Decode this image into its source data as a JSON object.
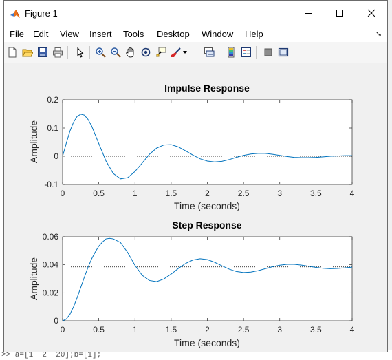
{
  "window": {
    "title": "Figure 1"
  },
  "menu": {
    "items": [
      "File",
      "Edit",
      "View",
      "Insert",
      "Tools",
      "Desktop",
      "Window",
      "Help"
    ]
  },
  "background": {
    "command_line": ">> a=[1  2  20];b=[1];"
  },
  "toolbar": {
    "buttons": [
      "new-figure-icon",
      "open-file-icon",
      "save-icon",
      "print-icon",
      "edit-plot-arrow-icon",
      "zoom-in-icon",
      "zoom-out-icon",
      "pan-hand-icon",
      "rotate-3d-icon",
      "data-cursor-icon",
      "brush-icon",
      "link-plot-icon",
      "colorbar-icon",
      "legend-icon",
      "hide-plot-tools-icon",
      "show-plot-tools-icon"
    ]
  },
  "colors": {
    "line": "#0072bd",
    "axes_bg": "#ffffff",
    "figure_bg": "#f0f0f0"
  },
  "chart_data": [
    {
      "type": "line",
      "title": "Impulse Response",
      "xlabel": "Time (seconds)",
      "ylabel": "Amplitude",
      "xlim": [
        0,
        4
      ],
      "ylim": [
        -0.1,
        0.2
      ],
      "xticks": [
        "0",
        "0.5",
        "1",
        "1.5",
        "2",
        "2.5",
        "3",
        "3.5",
        "4"
      ],
      "yticks": [
        "-0.1",
        "0",
        "0.1",
        "0.2"
      ],
      "reference_line": 0,
      "series": [
        {
          "x": [
            0,
            0.05,
            0.1,
            0.15,
            0.2,
            0.25,
            0.3,
            0.35,
            0.4,
            0.5,
            0.6,
            0.7,
            0.8,
            0.9,
            1.0,
            1.1,
            1.2,
            1.3,
            1.4,
            1.5,
            1.6,
            1.7,
            1.8,
            1.9,
            2.0,
            2.1,
            2.2,
            2.3,
            2.4,
            2.5,
            2.6,
            2.7,
            2.8,
            2.9,
            3.0,
            3.1,
            3.2,
            3.3,
            3.4,
            3.5,
            3.6,
            3.7,
            3.8,
            3.9,
            4.0
          ],
          "y": [
            0,
            0.045,
            0.088,
            0.12,
            0.141,
            0.149,
            0.146,
            0.131,
            0.108,
            0.045,
            -0.017,
            -0.061,
            -0.08,
            -0.076,
            -0.054,
            -0.024,
            0.007,
            0.029,
            0.04,
            0.041,
            0.033,
            0.019,
            0.004,
            -0.009,
            -0.017,
            -0.02,
            -0.018,
            -0.012,
            -0.004,
            0.003,
            0.008,
            0.01,
            0.01,
            0.007,
            0.003,
            -0.001,
            -0.004,
            -0.005,
            -0.005,
            -0.004,
            -0.002,
            0,
            0.001,
            0.002,
            0.002
          ]
        }
      ]
    },
    {
      "type": "line",
      "title": "Step Response",
      "xlabel": "Time (seconds)",
      "ylabel": "Amplitude",
      "xlim": [
        0,
        4
      ],
      "ylim": [
        0,
        0.06
      ],
      "xticks": [
        "0",
        "0.5",
        "1",
        "1.5",
        "2",
        "2.5",
        "3",
        "3.5",
        "4"
      ],
      "yticks": [
        "0",
        "0.02",
        "0.04",
        "0.06"
      ],
      "reference_line": 0.0385,
      "series": [
        {
          "x": [
            0,
            0.05,
            0.1,
            0.15,
            0.2,
            0.25,
            0.3,
            0.35,
            0.4,
            0.45,
            0.5,
            0.55,
            0.6,
            0.65,
            0.7,
            0.8,
            0.9,
            1.0,
            1.1,
            1.2,
            1.3,
            1.4,
            1.5,
            1.6,
            1.7,
            1.8,
            1.9,
            2.0,
            2.1,
            2.2,
            2.3,
            2.4,
            2.5,
            2.6,
            2.7,
            2.8,
            2.9,
            3.0,
            3.1,
            3.2,
            3.3,
            3.4,
            3.5,
            3.6,
            3.7,
            3.8,
            3.9,
            4.0
          ],
          "y": [
            0,
            0.0012,
            0.0045,
            0.0098,
            0.0164,
            0.0237,
            0.0311,
            0.038,
            0.0441,
            0.049,
            0.0533,
            0.0562,
            0.0585,
            0.0589,
            0.0585,
            0.0559,
            0.0487,
            0.0396,
            0.0325,
            0.0288,
            0.028,
            0.0299,
            0.0334,
            0.0374,
            0.041,
            0.0434,
            0.0443,
            0.0437,
            0.0418,
            0.0393,
            0.0369,
            0.0352,
            0.0345,
            0.0348,
            0.0358,
            0.0372,
            0.0386,
            0.0397,
            0.0403,
            0.0403,
            0.0398,
            0.039,
            0.0381,
            0.0375,
            0.0372,
            0.0374,
            0.0378,
            0.0383
          ]
        }
      ]
    }
  ]
}
